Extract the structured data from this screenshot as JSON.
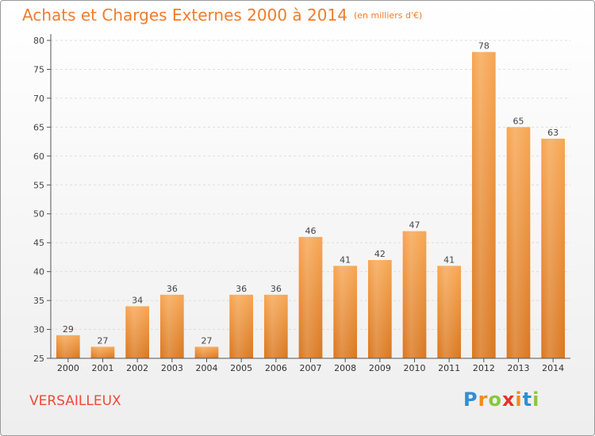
{
  "title": "Achats et Charges Externes 2000 à 2014",
  "unit": "(en milliers d'€)",
  "commune": "VERSAILLEUX",
  "brand": {
    "letters": [
      "P",
      "r",
      "o",
      "x",
      "i",
      "t",
      "i"
    ],
    "colors": [
      "#2e8fd3",
      "#f28b1d",
      "#8cc63e",
      "#e4322b",
      "#f28b1d",
      "#2e8fd3",
      "#8cc63e"
    ]
  },
  "colors": {
    "bar_top": "#f7a652",
    "bar_bottom": "#d9771f",
    "title": "#f07c2c",
    "commune": "#ee4a3b"
  },
  "chart_data": {
    "type": "bar",
    "categories": [
      "2000",
      "2001",
      "2002",
      "2003",
      "2004",
      "2005",
      "2006",
      "2007",
      "2008",
      "2009",
      "2010",
      "2011",
      "2012",
      "2013",
      "2014"
    ],
    "values": [
      29,
      27,
      34,
      36,
      27,
      36,
      36,
      46,
      41,
      42,
      47,
      41,
      78,
      65,
      63
    ],
    "ylim": [
      25,
      80
    ],
    "yticks": [
      25,
      30,
      35,
      40,
      45,
      50,
      55,
      60,
      65,
      70,
      75,
      80
    ],
    "grid": true,
    "data_labels": true
  }
}
